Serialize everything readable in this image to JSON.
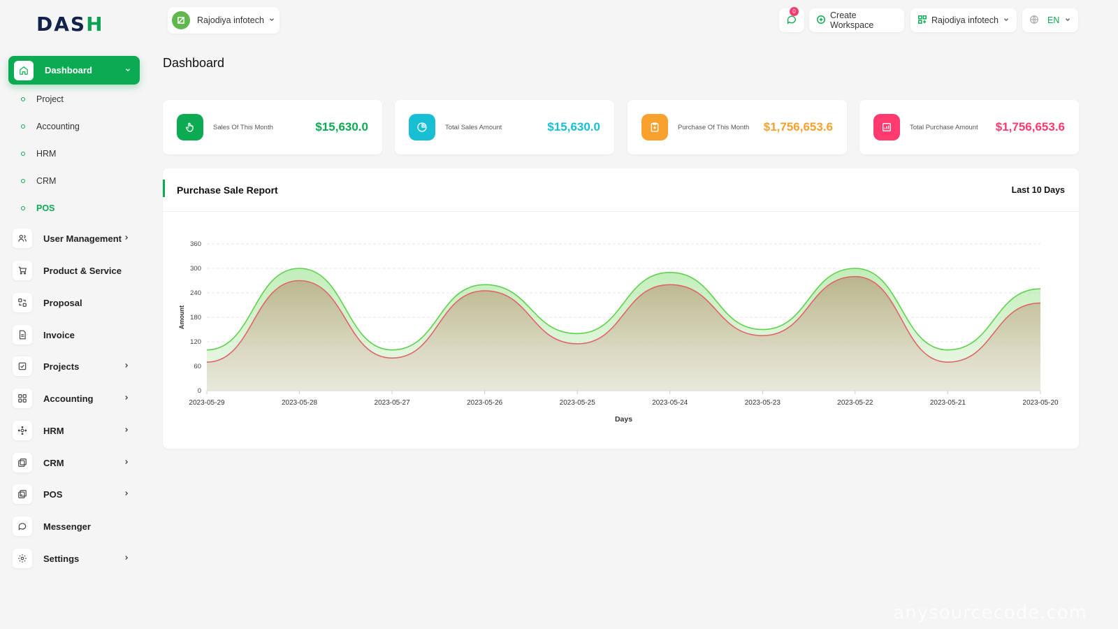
{
  "brand": {
    "logo_main": "DAS",
    "logo_accent": "H"
  },
  "workspace": {
    "name": "Rajodiya infotech"
  },
  "topbar": {
    "notification_count": "0",
    "create_workspace": "Create Workspace",
    "user_workspace": "Rajodiya infotech",
    "language": "EN"
  },
  "sidebar": {
    "active": {
      "label": "Dashboard",
      "icon": "home-icon"
    },
    "sub_items": [
      "Project",
      "Accounting",
      "HRM",
      "CRM",
      "POS"
    ],
    "active_sub": "POS",
    "items": [
      {
        "label": "User Management",
        "icon": "users-icon",
        "has_children": true
      },
      {
        "label": "Product & Service",
        "icon": "cart-icon",
        "has_children": false
      },
      {
        "label": "Proposal",
        "icon": "proposal-icon",
        "has_children": false
      },
      {
        "label": "Invoice",
        "icon": "invoice-icon",
        "has_children": false
      },
      {
        "label": "Projects",
        "icon": "check-square-icon",
        "has_children": true
      },
      {
        "label": "Accounting",
        "icon": "grid-icon",
        "has_children": true
      },
      {
        "label": "HRM",
        "icon": "hrm-icon",
        "has_children": true
      },
      {
        "label": "CRM",
        "icon": "crm-icon",
        "has_children": true
      },
      {
        "label": "POS",
        "icon": "pos-icon",
        "has_children": true
      },
      {
        "label": "Messenger",
        "icon": "message-icon",
        "has_children": false
      },
      {
        "label": "Settings",
        "icon": "gear-icon",
        "has_children": true
      }
    ]
  },
  "page": {
    "title": "Dashboard"
  },
  "stats": [
    {
      "label": "Sales Of This Month",
      "value": "$15,630.0",
      "color": "#0caa52",
      "icon": "hand-pointer-icon"
    },
    {
      "label": "Total Sales Amount",
      "value": "$15,630.0",
      "color": "#18bfd4",
      "icon": "pie-icon"
    },
    {
      "label": "Purchase Of This Month",
      "value": "$1,756,653.6",
      "color": "#f7a12e",
      "icon": "clipboard-icon"
    },
    {
      "label": "Total Purchase Amount",
      "value": "$1,756,653.6",
      "color": "#ff3a6e",
      "icon": "bar-chart-icon"
    }
  ],
  "report": {
    "title": "Purchase Sale Report",
    "range": "Last 10 Days"
  },
  "chart_data": {
    "type": "area",
    "x": [
      "2023-05-29",
      "2023-05-28",
      "2023-05-27",
      "2023-05-26",
      "2023-05-25",
      "2023-05-24",
      "2023-05-23",
      "2023-05-22",
      "2023-05-21",
      "2023-05-20"
    ],
    "series": [
      {
        "values": [
          100,
          300,
          100,
          260,
          140,
          290,
          150,
          300,
          100,
          250
        ],
        "color": "#5fd14e"
      },
      {
        "values": [
          70,
          270,
          80,
          245,
          115,
          260,
          135,
          280,
          70,
          215
        ],
        "color": "#e0646a"
      }
    ],
    "yticks": [
      0,
      60,
      120,
      180,
      240,
      300,
      360
    ],
    "ylim": [
      0,
      360
    ],
    "xlabel": "Days",
    "ylabel": "Amount",
    "grid": true
  },
  "watermark": "anysourcecode.com"
}
